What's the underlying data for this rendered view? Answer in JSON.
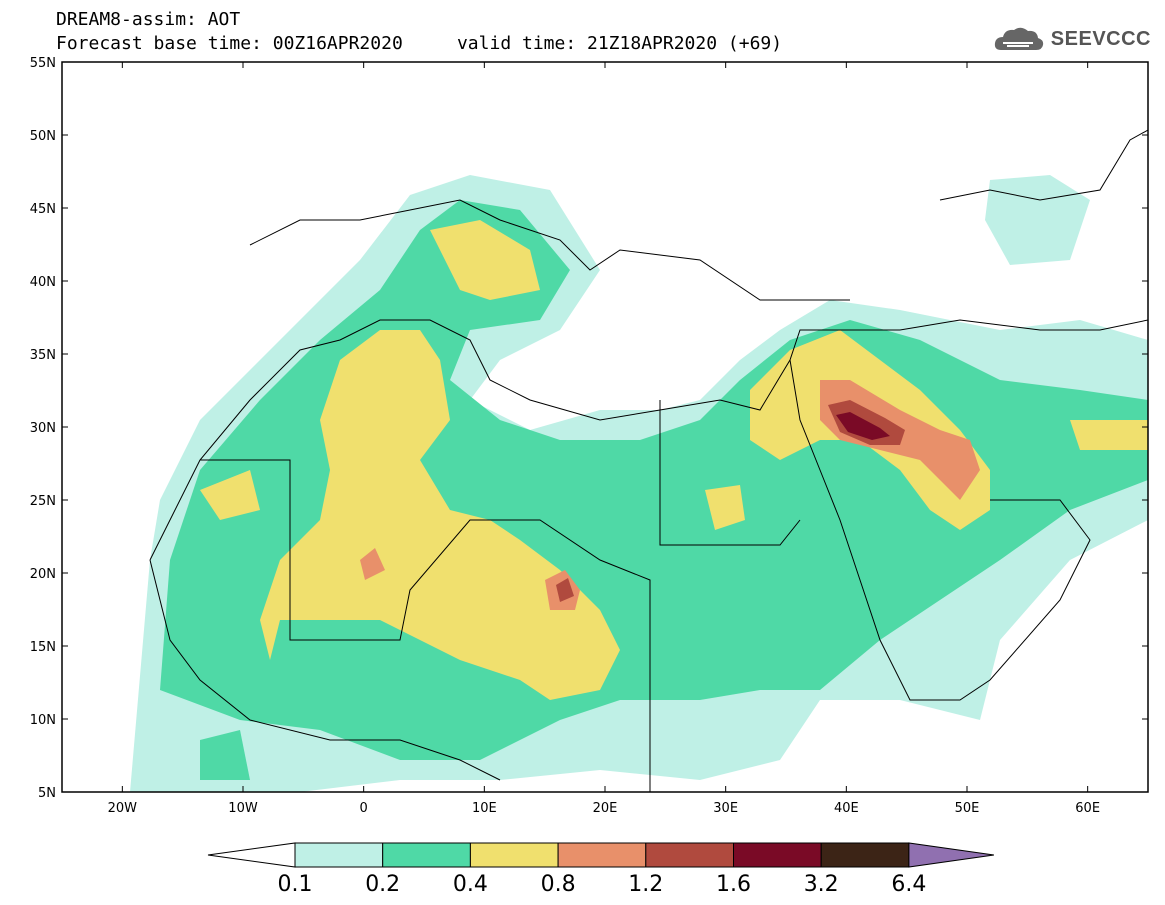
{
  "header": {
    "line1": "DREAM8-assim: AOT",
    "line2": "Forecast base time: 00Z16APR2020     valid time: 21Z18APR2020 (+69)"
  },
  "logo": {
    "text": "SEEVCCC",
    "icon": "cloud-icon"
  },
  "map": {
    "lon_range": [
      -25,
      65
    ],
    "lat_range": [
      5,
      55
    ],
    "lat_ticks": [
      {
        "value": 55,
        "label": "55N"
      },
      {
        "value": 50,
        "label": "50N"
      },
      {
        "value": 45,
        "label": "45N"
      },
      {
        "value": 40,
        "label": "40N"
      },
      {
        "value": 35,
        "label": "35N"
      },
      {
        "value": 30,
        "label": "30N"
      },
      {
        "value": 25,
        "label": "25N"
      },
      {
        "value": 20,
        "label": "20N"
      },
      {
        "value": 15,
        "label": "15N"
      },
      {
        "value": 10,
        "label": "10N"
      },
      {
        "value": 5,
        "label": "5N"
      }
    ],
    "lon_ticks": [
      {
        "value": -20,
        "label": "20W"
      },
      {
        "value": -10,
        "label": "10W"
      },
      {
        "value": 0,
        "label": "0"
      },
      {
        "value": 10,
        "label": "10E"
      },
      {
        "value": 20,
        "label": "20E"
      },
      {
        "value": 30,
        "label": "30E"
      },
      {
        "value": 40,
        "label": "40E"
      },
      {
        "value": 50,
        "label": "50E"
      },
      {
        "value": 60,
        "label": "60E"
      }
    ]
  },
  "colorbar": {
    "labels": [
      "0.1",
      "0.2",
      "0.4",
      "0.8",
      "1.2",
      "1.6",
      "3.2",
      "6.4"
    ],
    "colors": [
      "#ffffff",
      "#bff0e6",
      "#4fd9a6",
      "#f0e06e",
      "#e8906a",
      "#b04a3e",
      "#7a0a26",
      "#3c2416",
      "#9070b0"
    ]
  }
}
